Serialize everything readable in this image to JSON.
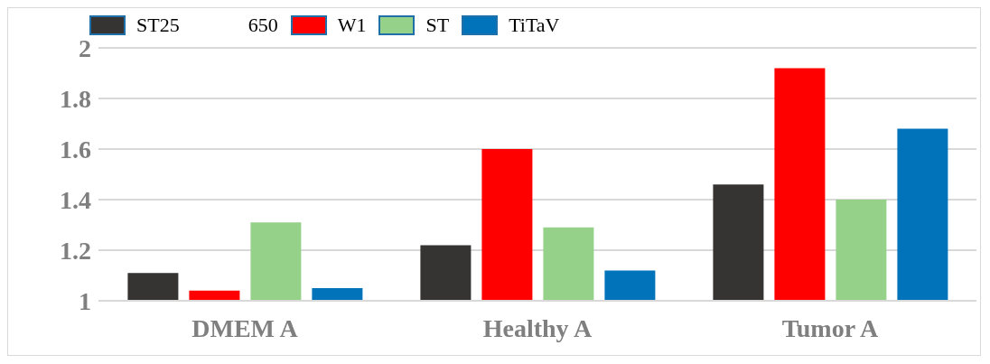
{
  "chart_data": {
    "type": "bar",
    "categories": [
      "DMEM  A",
      "Healthy  A",
      "Tumor  A"
    ],
    "series": [
      {
        "name": "ST25",
        "color": "#363432",
        "values": [
          1.11,
          1.22,
          1.46
        ]
      },
      {
        "name": "W1",
        "color": "#ff0000",
        "values": [
          1.04,
          1.6,
          1.92
        ]
      },
      {
        "name": "ST",
        "color": "#96d18a",
        "values": [
          1.31,
          1.29,
          1.4
        ]
      },
      {
        "name": "TiTaV",
        "color": "#0173bb",
        "values": [
          1.05,
          1.12,
          1.68
        ]
      }
    ],
    "annotations": [
      "650"
    ],
    "ylim": [
      1,
      2
    ],
    "yticks": [
      1,
      1.2,
      1.4,
      1.6,
      1.8,
      2
    ],
    "grid": "y",
    "legend": "top"
  }
}
